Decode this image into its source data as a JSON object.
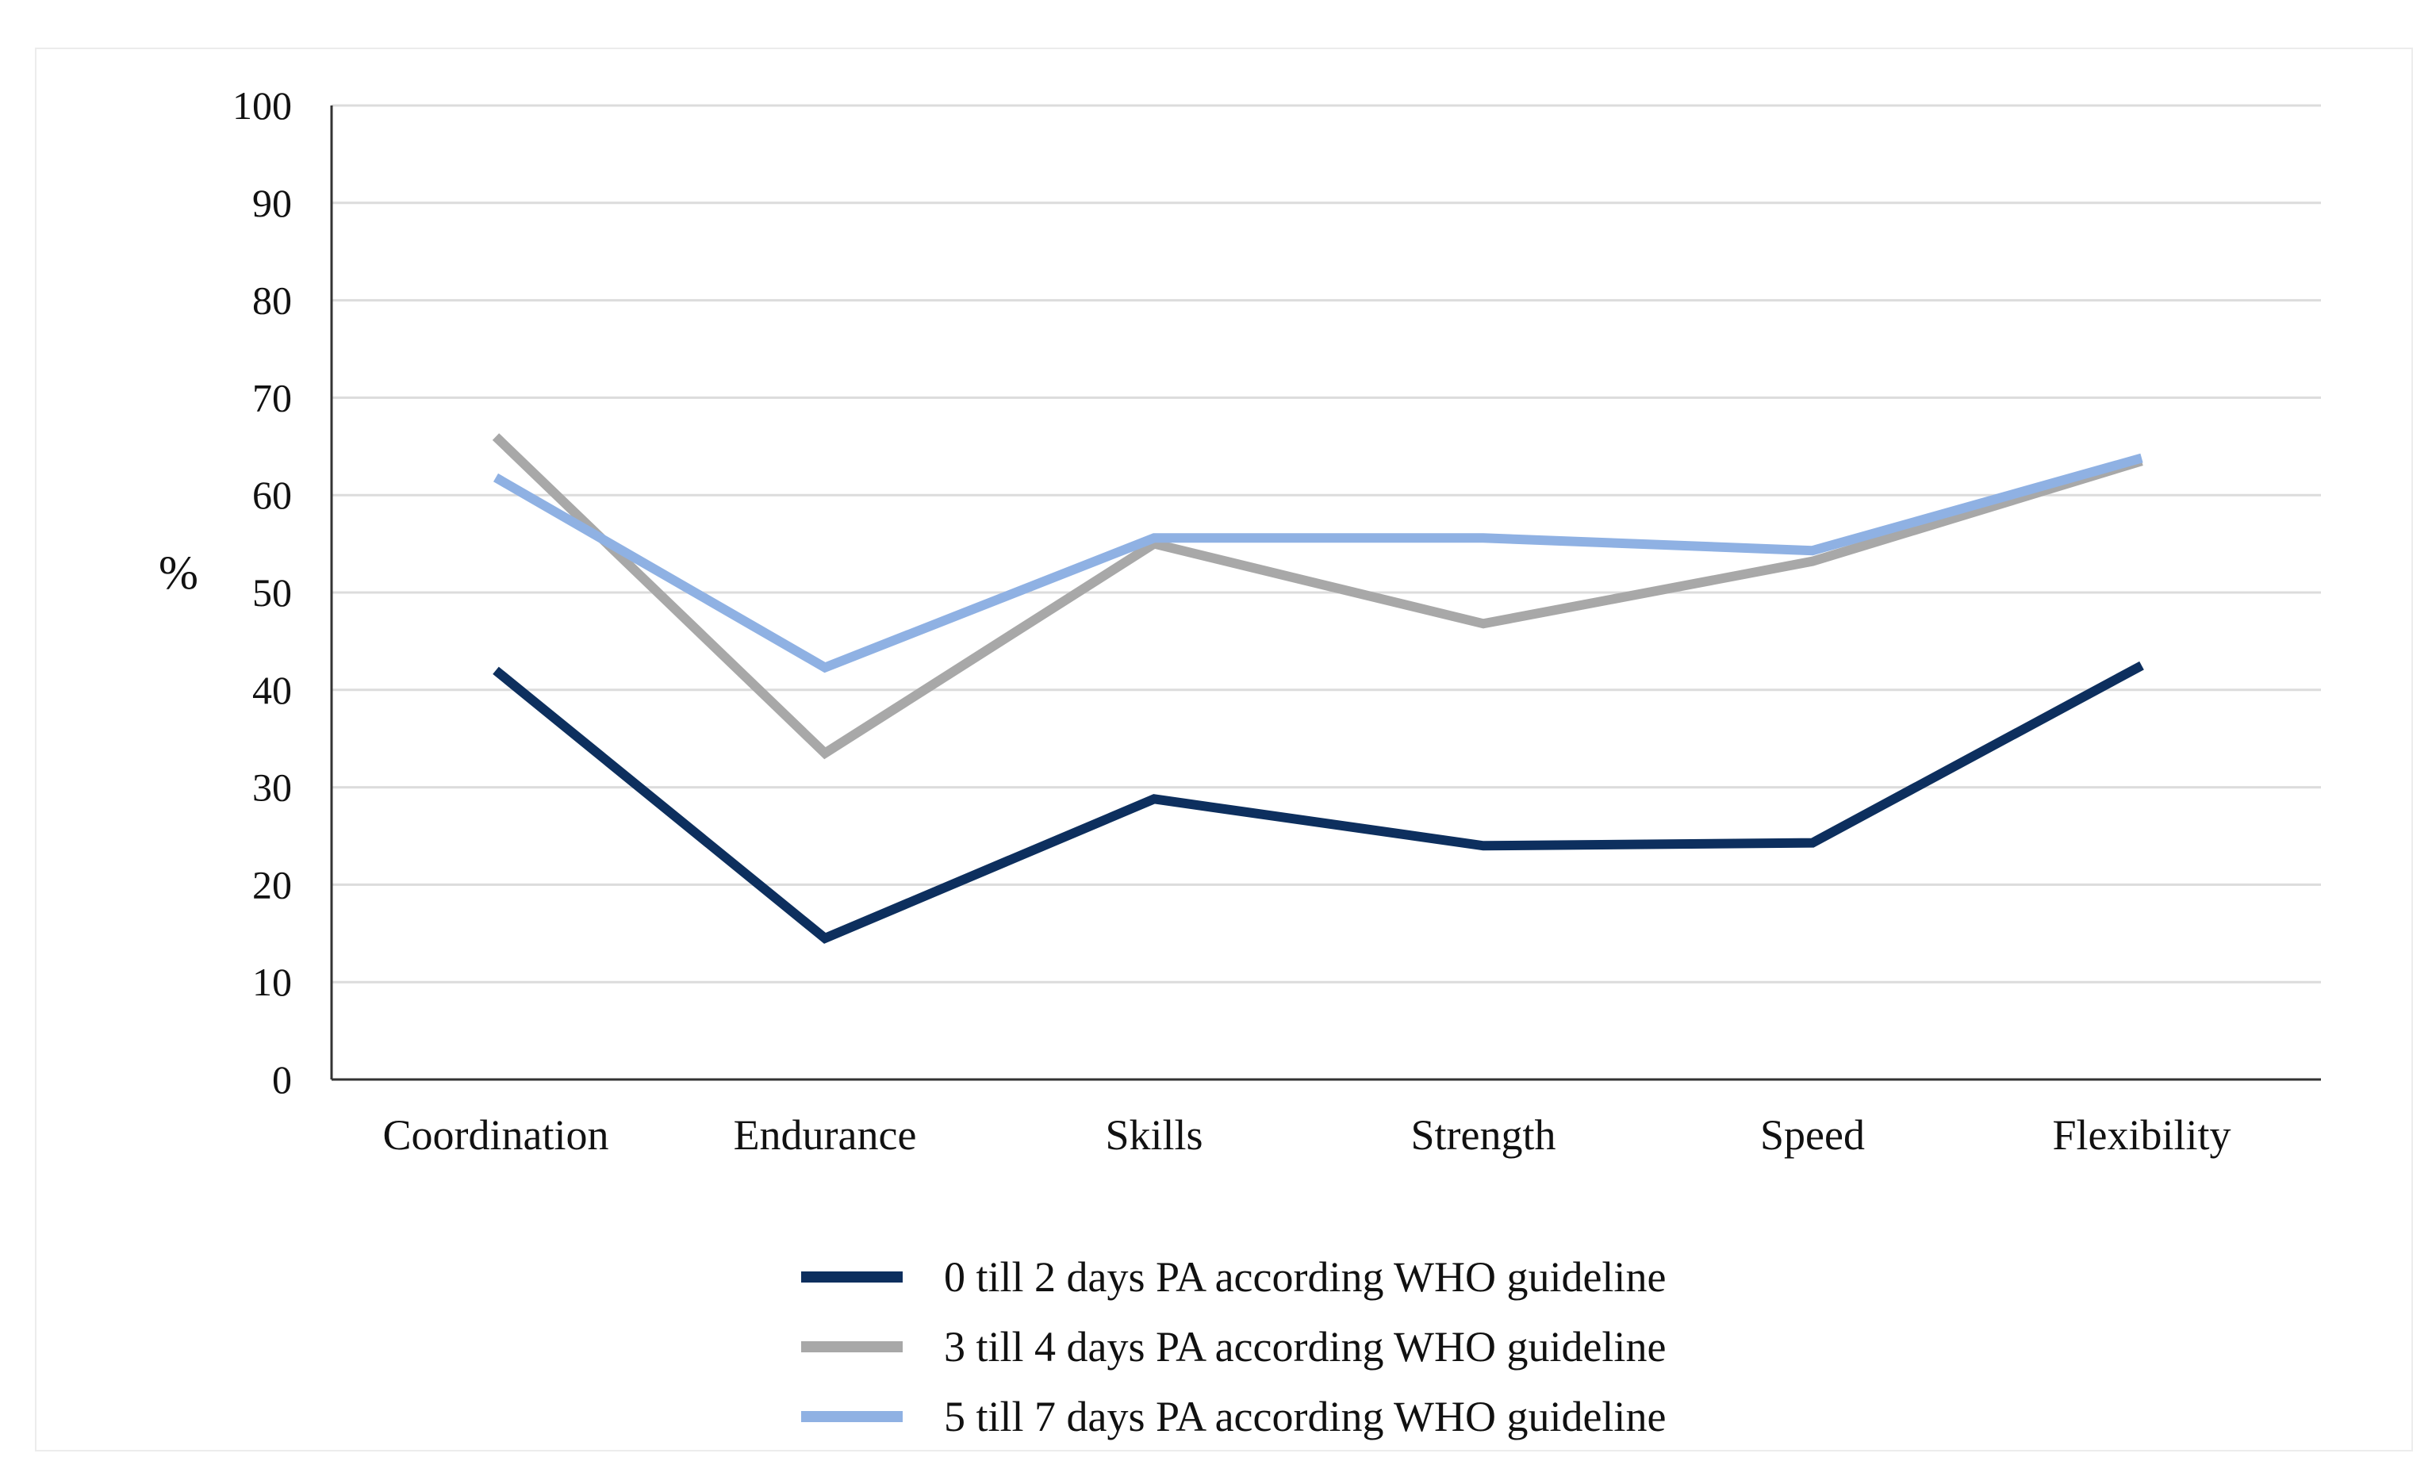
{
  "chart_data": {
    "type": "line",
    "title": "",
    "xlabel": "",
    "ylabel": "%",
    "ylim": [
      0,
      100
    ],
    "yticks": [
      0,
      10,
      20,
      30,
      40,
      50,
      60,
      70,
      80,
      90,
      100
    ],
    "grid": true,
    "legend_position": "bottom",
    "categories": [
      "Coordination",
      "Endurance",
      "Skills",
      "Strength",
      "Speed",
      "Flexibility"
    ],
    "series": [
      {
        "name": "0 till 2 days PA according WHO guideline",
        "color": "#0d2f5e",
        "values": [
          42,
          14.5,
          28.8,
          24,
          24.3,
          42.5
        ]
      },
      {
        "name": "3 till 4 days PA according WHO guideline",
        "color": "#a8a8a8",
        "values": [
          66,
          33.5,
          55,
          46.8,
          53.2,
          63.5
        ]
      },
      {
        "name": "5 till 7 days PA according WHO guideline",
        "color": "#8fb1e3",
        "values": [
          61.8,
          42.3,
          55.6,
          55.6,
          54.3,
          63.8
        ]
      }
    ]
  }
}
